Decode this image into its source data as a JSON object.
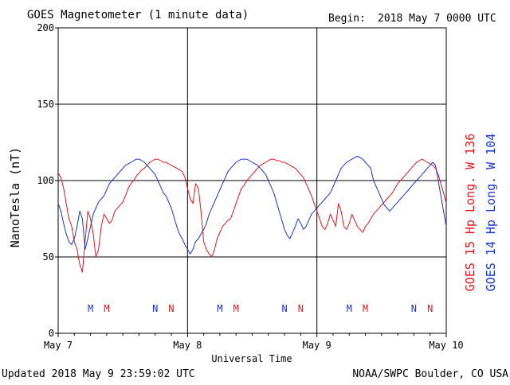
{
  "header": {
    "title": "GOES Magnetometer (1 minute data)",
    "begin_label": "Begin:",
    "begin_value": "2018 May 7 0000 UTC"
  },
  "footer": {
    "updated": "Updated 2018 May  9 23:59:02 UTC",
    "credit": "NOAA/SWPC Boulder, CO USA"
  },
  "legend": {
    "goes15": {
      "label": "GOES 15 Hp  Long. W 136",
      "color": "#e8141b"
    },
    "goes14": {
      "label": "GOES 14 Hp  Long. W 104",
      "color": "#1634d6"
    }
  },
  "chart_data": {
    "type": "line",
    "xlabel": "Universal Time",
    "ylabel": "NanoTesla (nT)",
    "xlim": [
      0,
      72
    ],
    "ylim": [
      0,
      200
    ],
    "x_unit": "hours since 2018-05-07 00:00 UTC",
    "y_ticks": [
      0,
      50,
      100,
      150,
      200
    ],
    "x_ticks": [
      {
        "x": 0,
        "label": "May 7"
      },
      {
        "x": 24,
        "label": "May 8"
      },
      {
        "x": 48,
        "label": "May 9"
      },
      {
        "x": 72,
        "label": "May 10"
      }
    ],
    "grid": true,
    "markers": [
      {
        "x": 6,
        "label": "M",
        "color": "#1634d6"
      },
      {
        "x": 9,
        "label": "M",
        "color": "#e8141b"
      },
      {
        "x": 18,
        "label": "N",
        "color": "#1634d6"
      },
      {
        "x": 21,
        "label": "N",
        "color": "#e8141b"
      },
      {
        "x": 30,
        "label": "M",
        "color": "#1634d6"
      },
      {
        "x": 33,
        "label": "M",
        "color": "#e8141b"
      },
      {
        "x": 42,
        "label": "N",
        "color": "#1634d6"
      },
      {
        "x": 45,
        "label": "N",
        "color": "#e8141b"
      },
      {
        "x": 54,
        "label": "M",
        "color": "#1634d6"
      },
      {
        "x": 57,
        "label": "M",
        "color": "#e8141b"
      },
      {
        "x": 66,
        "label": "N",
        "color": "#1634d6"
      },
      {
        "x": 69,
        "label": "N",
        "color": "#e8141b"
      }
    ],
    "series": [
      {
        "name": "GOES 15 Hp  Long. W 136",
        "color": "#e8141b",
        "x": [
          0,
          0.5,
          1,
          1.5,
          2,
          2.5,
          3,
          3.5,
          4,
          4.5,
          5,
          5.5,
          6,
          6.5,
          7,
          7.5,
          8,
          8.5,
          9,
          9.5,
          10,
          10.5,
          11,
          11.5,
          12,
          12.5,
          13,
          13.5,
          14,
          14.5,
          15,
          15.5,
          16,
          16.5,
          17,
          17.5,
          18,
          18.5,
          19,
          19.5,
          20,
          20.5,
          21,
          21.5,
          22,
          22.5,
          23,
          23.5,
          24,
          24.5,
          25,
          25.5,
          26,
          26.5,
          27,
          27.5,
          28,
          28.5,
          29,
          29.5,
          30,
          30.5,
          31,
          31.5,
          32,
          32.5,
          33,
          33.5,
          34,
          34.5,
          35,
          35.5,
          36,
          36.5,
          37,
          37.5,
          38,
          38.5,
          39,
          39.5,
          40,
          40.5,
          41,
          41.5,
          42,
          42.5,
          43,
          43.5,
          44,
          44.5,
          45,
          45.5,
          46,
          46.5,
          47,
          47.5,
          48,
          48.5,
          49,
          49.5,
          50,
          50.5,
          51,
          51.5,
          52,
          52.5,
          53,
          53.5,
          54,
          54.5,
          55,
          55.5,
          56,
          56.5,
          57,
          57.5,
          58,
          58.5,
          59,
          59.5,
          60,
          60.5,
          61,
          61.5,
          62,
          62.5,
          63,
          63.5,
          64,
          64.5,
          65,
          65.5,
          66,
          66.5,
          67,
          67.5,
          68,
          68.5,
          69,
          69.5,
          70,
          70.5,
          71,
          71.5,
          72
        ],
        "values": [
          105,
          102,
          95,
          85,
          75,
          70,
          60,
          55,
          45,
          40,
          60,
          80,
          75,
          65,
          50,
          55,
          70,
          78,
          75,
          72,
          74,
          80,
          82,
          84,
          86,
          90,
          95,
          98,
          100,
          103,
          105,
          107,
          108,
          110,
          112,
          113,
          114,
          114,
          113,
          112,
          112,
          111,
          110,
          109,
          108,
          107,
          106,
          102,
          95,
          88,
          85,
          98,
          95,
          80,
          60,
          55,
          52,
          50,
          55,
          62,
          66,
          70,
          72,
          74,
          75,
          80,
          85,
          90,
          95,
          97,
          100,
          102,
          104,
          106,
          108,
          110,
          111,
          112,
          113,
          114,
          114,
          113,
          113,
          112,
          112,
          111,
          110,
          109,
          108,
          106,
          104,
          102,
          98,
          94,
          90,
          85,
          80,
          75,
          70,
          68,
          72,
          78,
          74,
          70,
          85,
          80,
          70,
          68,
          72,
          78,
          74,
          70,
          68,
          66,
          70,
          72,
          75,
          78,
          80,
          82,
          84,
          86,
          88,
          90,
          92,
          95,
          98,
          100,
          102,
          104,
          106,
          108,
          110,
          112,
          113,
          114,
          113,
          112,
          111,
          110,
          108,
          104,
          98,
          92,
          85
        ]
      },
      {
        "name": "GOES 14 Hp  Long. W 104",
        "color": "#1634d6",
        "x": [
          0,
          0.5,
          1,
          1.5,
          2,
          2.5,
          3,
          3.5,
          4,
          4.5,
          5,
          5.5,
          6,
          6.5,
          7,
          7.5,
          8,
          8.5,
          9,
          9.5,
          10,
          10.5,
          11,
          11.5,
          12,
          12.5,
          13,
          13.5,
          14,
          14.5,
          15,
          15.5,
          16,
          16.5,
          17,
          17.5,
          18,
          18.5,
          19,
          19.5,
          20,
          20.5,
          21,
          21.5,
          22,
          22.5,
          23,
          23.5,
          24,
          24.5,
          25,
          25.5,
          26,
          26.5,
          27,
          27.5,
          28,
          28.5,
          29,
          29.5,
          30,
          30.5,
          31,
          31.5,
          32,
          32.5,
          33,
          33.5,
          34,
          34.5,
          35,
          35.5,
          36,
          36.5,
          37,
          37.5,
          38,
          38.5,
          39,
          39.5,
          40,
          40.5,
          41,
          41.5,
          42,
          42.5,
          43,
          43.5,
          44,
          44.5,
          45,
          45.5,
          46,
          46.5,
          47,
          47.5,
          48,
          48.5,
          49,
          49.5,
          50,
          50.5,
          51,
          51.5,
          52,
          52.5,
          53,
          53.5,
          54,
          54.5,
          55,
          55.5,
          56,
          56.5,
          57,
          57.5,
          58,
          58.5,
          59,
          59.5,
          60,
          60.5,
          61,
          61.5,
          62,
          62.5,
          63,
          63.5,
          64,
          64.5,
          65,
          65.5,
          66,
          66.5,
          67,
          67.5,
          68,
          68.5,
          69,
          69.5,
          70,
          70.5,
          71,
          71.5,
          72
        ],
        "values": [
          85,
          80,
          72,
          65,
          60,
          58,
          62,
          70,
          80,
          75,
          55,
          62,
          70,
          78,
          82,
          86,
          88,
          90,
          94,
          98,
          100,
          102,
          104,
          106,
          108,
          110,
          111,
          112,
          113,
          114,
          114,
          113,
          112,
          110,
          108,
          106,
          104,
          100,
          96,
          92,
          90,
          86,
          82,
          76,
          70,
          65,
          62,
          58,
          55,
          52,
          55,
          60,
          62,
          65,
          68,
          72,
          78,
          82,
          86,
          90,
          94,
          98,
          102,
          106,
          108,
          110,
          112,
          113,
          114,
          114,
          114,
          113,
          112,
          111,
          110,
          108,
          106,
          104,
          100,
          96,
          92,
          86,
          80,
          74,
          68,
          64,
          62,
          66,
          70,
          75,
          72,
          68,
          70,
          74,
          78,
          80,
          82,
          84,
          86,
          88,
          90,
          92,
          96,
          100,
          104,
          108,
          110,
          112,
          113,
          114,
          115,
          116,
          115,
          114,
          112,
          110,
          108,
          100,
          96,
          92,
          88,
          84,
          82,
          80,
          82,
          84,
          86,
          88,
          90,
          92,
          94,
          96,
          98,
          100,
          102,
          104,
          106,
          108,
          110,
          112,
          110,
          100,
          90,
          80,
          70
        ]
      }
    ]
  }
}
